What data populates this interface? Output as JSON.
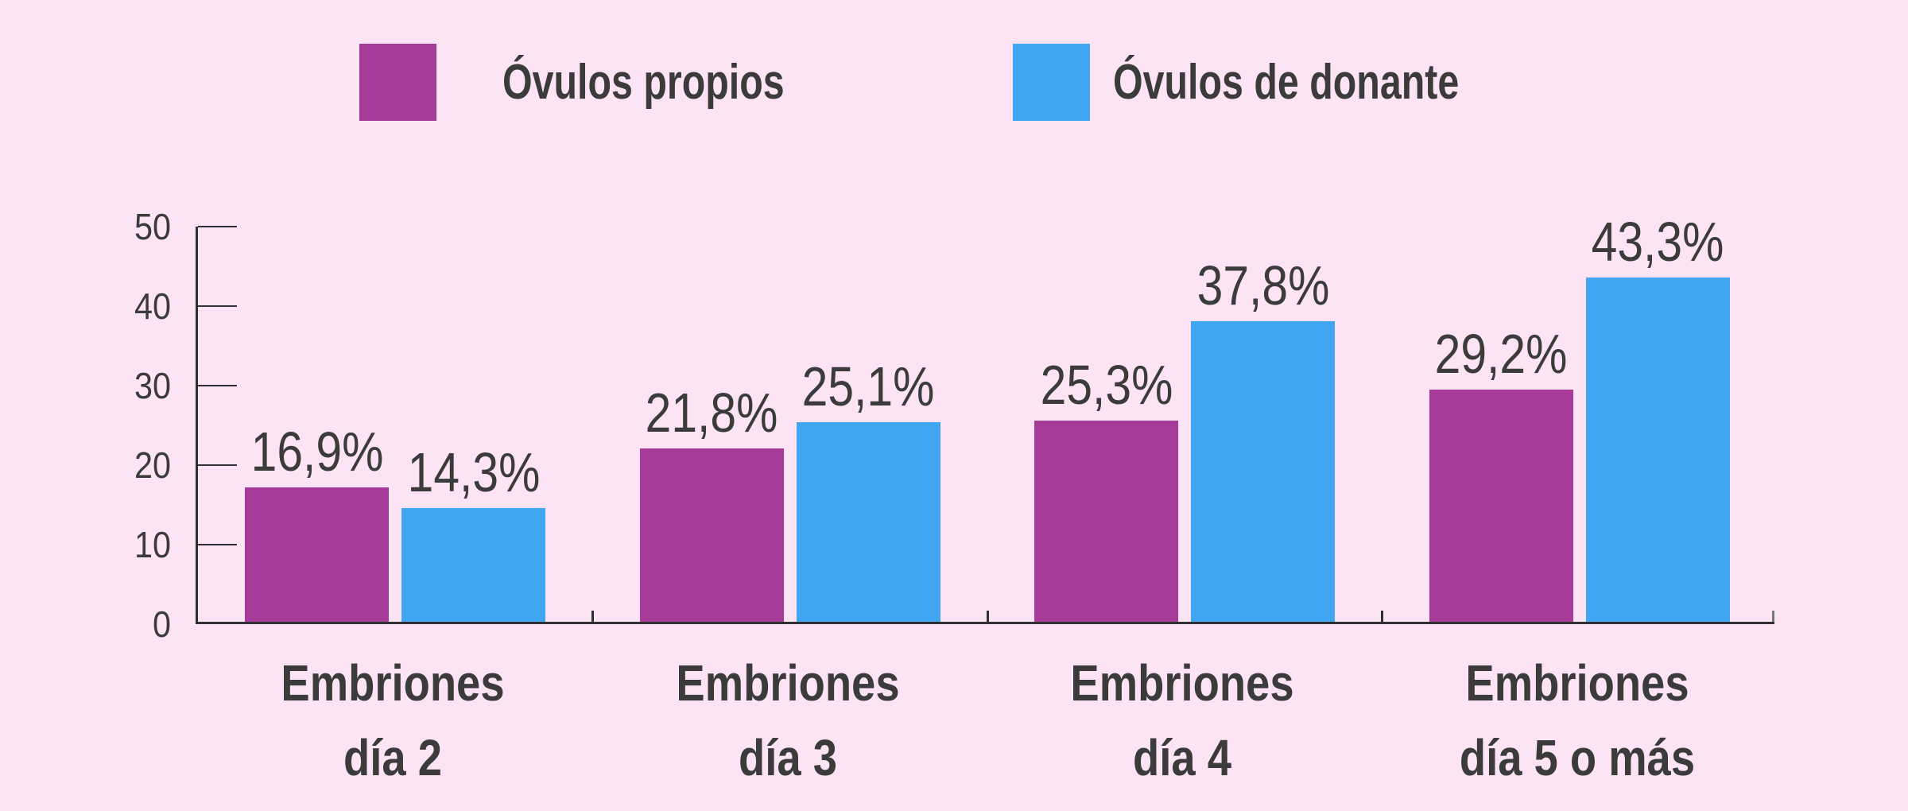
{
  "colors": {
    "background": "#FCE4F5",
    "text": "#3B3B3B",
    "axis": "#303030",
    "end_tick": "#777777"
  },
  "chart_data": {
    "type": "bar",
    "title": "",
    "xlabel": "",
    "ylabel": "",
    "categories": [
      {
        "line1": "Embriones",
        "line2": "día 2"
      },
      {
        "line1": "Embriones",
        "line2": "día 3"
      },
      {
        "line1": "Embriones",
        "line2": "día 4"
      },
      {
        "line1": "Embriones",
        "line2": "día 5 o más"
      }
    ],
    "series": [
      {
        "name": "Óvulos propios",
        "color": "#A63A99",
        "values": [
          16.9,
          21.8,
          25.3,
          29.2
        ],
        "labels": [
          "16,9%",
          "21,8%",
          "25,3%",
          "29,2%"
        ]
      },
      {
        "name": "Óvulos de donante",
        "color": "#41A6F2",
        "values": [
          14.3,
          25.1,
          37.8,
          43.3
        ],
        "labels": [
          "14,3%",
          "25,1%",
          "37,8%",
          "43,3%"
        ]
      }
    ],
    "ylim": [
      0,
      50
    ],
    "yticks": [
      0,
      10,
      20,
      30,
      40,
      50
    ],
    "grid": false,
    "legend_position": "top",
    "decimal_separator": ","
  }
}
